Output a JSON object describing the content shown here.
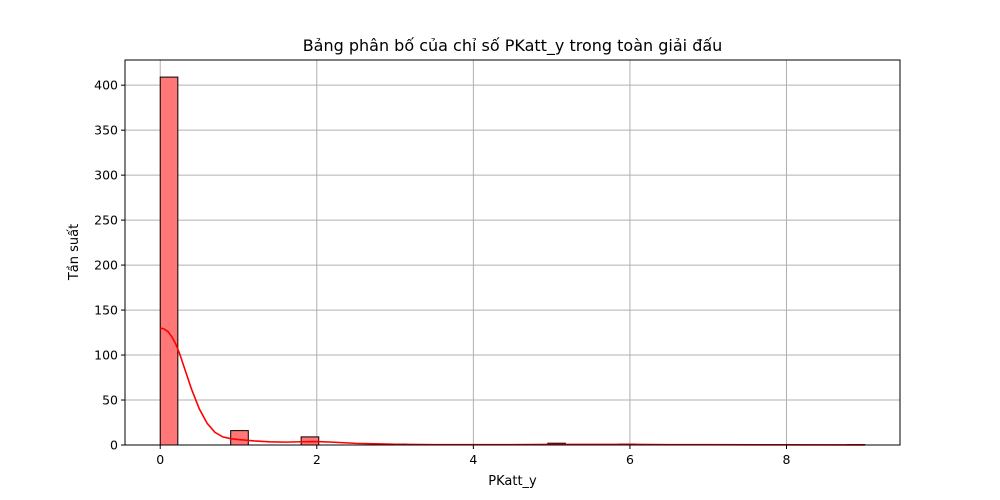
{
  "chart_data": {
    "type": "bar",
    "title": "Bảng phân bố của chỉ số PKatt_y trong toàn giải đấu",
    "xlabel": "PKatt_y",
    "ylabel": "Tần suất",
    "xlim": [
      -0.45,
      9.45
    ],
    "ylim": [
      0,
      428
    ],
    "grid": true,
    "x_ticks": [
      0,
      2,
      4,
      6,
      8
    ],
    "x_tick_labels": [
      "0",
      "2",
      "4",
      "6",
      "8"
    ],
    "y_ticks": [
      0,
      50,
      100,
      150,
      200,
      250,
      300,
      350,
      400
    ],
    "y_tick_labels": [
      "0",
      "50",
      "100",
      "150",
      "200",
      "250",
      "300",
      "350",
      "400"
    ],
    "bar_color": "#ff7777",
    "bar_edge_color": "#000000",
    "kde_color": "#ff0000",
    "bins": [
      {
        "x0": 0.0,
        "x1": 0.225,
        "count": 409
      },
      {
        "x0": 0.9,
        "x1": 1.125,
        "count": 16
      },
      {
        "x0": 1.8,
        "x1": 2.025,
        "count": 9
      },
      {
        "x0": 2.925,
        "x1": 3.15,
        "count": 1
      },
      {
        "x0": 4.95,
        "x1": 5.175,
        "count": 2
      },
      {
        "x0": 5.85,
        "x1": 6.075,
        "count": 1
      },
      {
        "x0": 7.875,
        "x1": 8.1,
        "count": 0.5
      },
      {
        "x0": 8.775,
        "x1": 9.0,
        "count": 0.5
      }
    ],
    "kde": {
      "x": [
        0,
        0.05,
        0.1,
        0.15,
        0.2,
        0.25,
        0.3,
        0.35,
        0.4,
        0.5,
        0.6,
        0.7,
        0.8,
        0.9,
        1.0,
        1.2,
        1.4,
        1.6,
        1.8,
        2.0,
        2.2,
        2.5,
        3.0,
        3.5,
        4.0,
        4.5,
        5.0,
        5.5,
        6.0,
        6.5,
        7.0,
        8.0,
        9.0
      ],
      "y": [
        130,
        129,
        126,
        120,
        112,
        101,
        88,
        75,
        62,
        40,
        24,
        14,
        9,
        7,
        6,
        4.5,
        3.5,
        3.2,
        3.6,
        3.8,
        3.2,
        1.8,
        0.8,
        0.4,
        0.3,
        0.4,
        0.7,
        0.6,
        0.6,
        0.4,
        0.3,
        0.2,
        0.1
      ]
    }
  }
}
